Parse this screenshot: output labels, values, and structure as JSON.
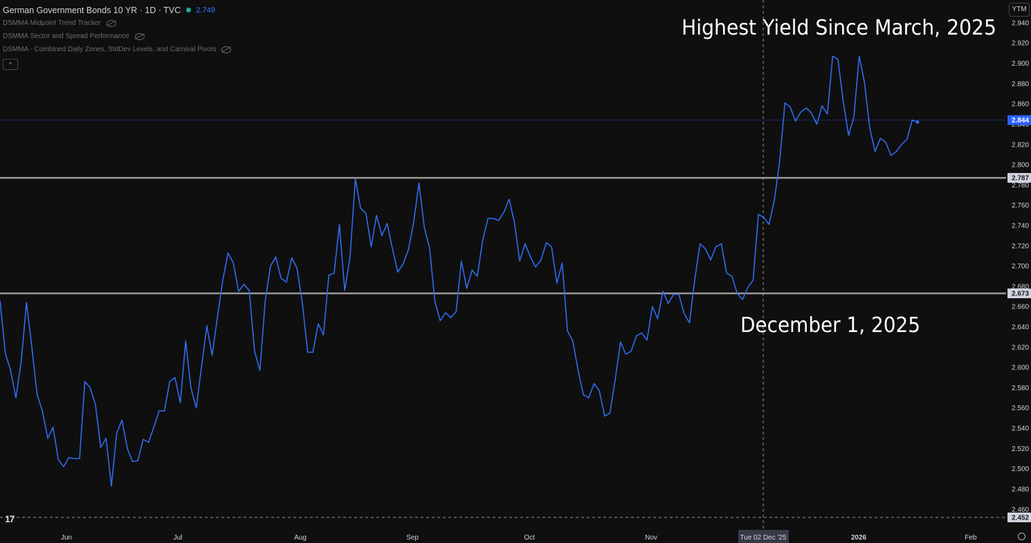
{
  "header": {
    "title": "German Government Bonds 10 YR · 1D · TVC",
    "price": "2.749",
    "indicators": [
      "DSMMA Midpoint Trend Tracker",
      "DSMMA Sector and Spread Performance",
      "DSMMA - Combined Daily Zones, StdDev Levels, and Carnival Pivots"
    ],
    "collapse_glyph": "^"
  },
  "scale_button": "YTM",
  "annotations": {
    "top_text": "Highest Yield Since March, 2025",
    "mid_text": "December 1, 2025",
    "crosshair_label": "Tue 02 Dec '25"
  },
  "colors": {
    "line": "#2f6cf0",
    "level": "#9a9a9a",
    "background": "#0f0f0f",
    "last_price": "#2962ff"
  },
  "chart_data": {
    "type": "line",
    "title": "German Government Bonds 10 YR · 1D · TVC",
    "xlabel": "",
    "ylabel": "",
    "ylim": [
      2.452,
      2.942
    ],
    "x_tick_labels": [
      "Jun",
      "Jul",
      "Aug",
      "Sep",
      "Oct",
      "Nov",
      "2026",
      "Feb"
    ],
    "y_ticks": [
      2.46,
      2.48,
      2.5,
      2.52,
      2.54,
      2.56,
      2.58,
      2.6,
      2.62,
      2.64,
      2.66,
      2.68,
      2.7,
      2.72,
      2.74,
      2.76,
      2.78,
      2.8,
      2.82,
      2.84,
      2.86,
      2.88,
      2.9,
      2.92,
      2.94
    ],
    "y_tick_labels": [
      "2.460",
      "2.480",
      "2.500",
      "2.520",
      "2.540",
      "2.560",
      "2.580",
      "2.600",
      "2.620",
      "2.640",
      "2.660",
      "2.680",
      "2.700",
      "2.720",
      "2.740",
      "2.760",
      "2.780",
      "2.800",
      "2.820",
      "2.840",
      "2.860",
      "2.880",
      "2.900",
      "2.920",
      "2.940"
    ],
    "horizontal_levels": [
      {
        "value": 2.787,
        "label": "2.787"
      },
      {
        "value": 2.673,
        "label": "2.673"
      },
      {
        "value": 2.452,
        "label": "2.452"
      }
    ],
    "last_value": {
      "value": 2.844,
      "label": "2.844"
    },
    "series": [
      {
        "values": [
          2.666,
          2.614,
          2.597,
          2.57,
          2.606,
          2.664,
          2.62,
          2.573,
          2.557,
          2.53,
          2.541,
          2.509,
          2.502,
          2.511,
          2.51,
          2.51,
          2.586,
          2.58,
          2.563,
          2.521,
          2.53,
          2.483,
          2.535,
          2.548,
          2.52,
          2.507,
          2.508,
          2.529,
          2.526,
          2.541,
          2.557,
          2.557,
          2.586,
          2.59,
          2.565,
          2.626,
          2.58,
          2.56,
          2.601,
          2.641,
          2.612,
          2.65,
          2.686,
          2.713,
          2.703,
          2.675,
          2.682,
          2.676,
          2.616,
          2.597,
          2.665,
          2.7,
          2.709,
          2.688,
          2.684,
          2.708,
          2.698,
          2.664,
          2.615,
          2.615,
          2.643,
          2.632,
          2.691,
          2.693,
          2.741,
          2.676,
          2.709,
          2.786,
          2.757,
          2.752,
          2.719,
          2.75,
          2.73,
          2.742,
          2.717,
          2.694,
          2.702,
          2.716,
          2.743,
          2.782,
          2.738,
          2.718,
          2.665,
          2.646,
          2.654,
          2.649,
          2.655,
          2.705,
          2.678,
          2.696,
          2.69,
          2.725,
          2.747,
          2.747,
          2.745,
          2.753,
          2.766,
          2.743,
          2.705,
          2.722,
          2.709,
          2.699,
          2.706,
          2.723,
          2.719,
          2.683,
          2.703,
          2.636,
          2.626,
          2.597,
          2.573,
          2.57,
          2.584,
          2.577,
          2.552,
          2.555,
          2.588,
          2.625,
          2.613,
          2.616,
          2.631,
          2.634,
          2.627,
          2.66,
          2.648,
          2.675,
          2.663,
          2.672,
          2.672,
          2.653,
          2.644,
          2.687,
          2.722,
          2.717,
          2.706,
          2.719,
          2.722,
          2.693,
          2.69,
          2.673,
          2.667,
          2.679,
          2.686,
          2.751,
          2.748,
          2.741,
          2.765,
          2.803,
          2.861,
          2.857,
          2.843,
          2.852,
          2.856,
          2.851,
          2.84,
          2.858,
          2.85,
          2.907,
          2.904,
          2.862,
          2.829,
          2.847,
          2.907,
          2.881,
          2.836,
          2.813,
          2.826,
          2.822,
          2.809,
          2.813,
          2.82,
          2.825,
          2.844,
          2.842
        ]
      }
    ]
  }
}
